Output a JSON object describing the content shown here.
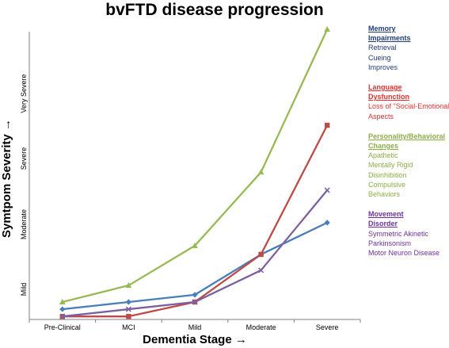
{
  "chart_data": {
    "type": "line",
    "title": "bvFTD disease progression",
    "xlabel": "Dementia Stage →",
    "ylabel": "Symtpom Severity →",
    "categories": [
      "Pre-Clinical",
      "MCI",
      "Mild",
      "Moderate",
      "Severe"
    ],
    "y_ticks": [
      "Mild",
      "Moderate",
      "Severe",
      "Very Severe"
    ],
    "ylim": [
      0,
      4
    ],
    "grid": false,
    "legend_position": "right",
    "series": [
      {
        "key": "memory",
        "color": "#4a7ebb",
        "marker": "diamond",
        "values": [
          0.12,
          0.22,
          0.32,
          0.88,
          1.32
        ],
        "legend_head": [
          "Memory",
          "Impairments"
        ],
        "legend_lines": [
          "Retrieval",
          "Cueing",
          "Improves"
        ],
        "legend_color": "#1f3d7a"
      },
      {
        "key": "language",
        "color": "#be4b48",
        "marker": "square",
        "values": [
          0.02,
          0.02,
          0.22,
          0.88,
          2.67
        ],
        "legend_head": [
          "Language",
          "Dysfunction"
        ],
        "legend_lines": [
          "Loss of \"Social-Emotional\"",
          "Aspects"
        ],
        "legend_color": "#e03030"
      },
      {
        "key": "personality",
        "color": "#98b954",
        "marker": "triangle",
        "values": [
          0.22,
          0.45,
          1.0,
          2.02,
          4.0
        ],
        "legend_head": [
          "Personality/Behavioral",
          "Changes"
        ],
        "legend_lines": [
          "Apathetic",
          "Mentally Rigid",
          "Disinhibition",
          "Compulsive",
          "Behaviors"
        ],
        "legend_color": "#8aae45"
      },
      {
        "key": "movement",
        "color": "#7d5fa0",
        "marker": "x",
        "values": [
          0.02,
          0.12,
          0.22,
          0.66,
          1.77
        ],
        "legend_head": [
          "Movement",
          "Disorder"
        ],
        "legend_lines": [
          "Symmetric Akinetic",
          "Parkinsonism",
          "Motor Neuron Disease"
        ],
        "legend_color": "#7030a0"
      }
    ]
  }
}
